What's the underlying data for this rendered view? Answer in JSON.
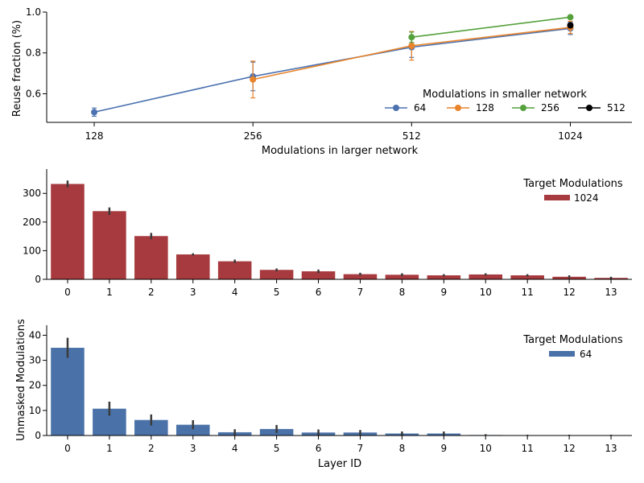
{
  "chart_data": [
    {
      "type": "line",
      "xlabel": "Modulations in larger network",
      "ylabel": "Reuse fraction (%)",
      "x": [
        128,
        256,
        512,
        1024
      ],
      "x_scale": "log2",
      "xlim": [
        104,
        1340
      ],
      "ylim": [
        0.46,
        1.0
      ],
      "yticks": [
        0.6,
        0.8,
        1.0
      ],
      "ytick_labels": [
        "0.6",
        "0.8",
        "1.0"
      ],
      "xtick_labels": [
        "128",
        "256",
        "512",
        "1024"
      ],
      "legend_title": "Modulations in smaller network",
      "legend_position": "bottom-right",
      "series": [
        {
          "name": "64",
          "color": "#4c72b0",
          "values": [
            0.51,
            0.685,
            0.828,
            0.92
          ],
          "err": [
            0.02,
            0.07,
            0.05,
            0.03
          ]
        },
        {
          "name": "128",
          "color": "#e8842c",
          "values": [
            null,
            0.67,
            0.835,
            0.925
          ],
          "err": [
            null,
            0.09,
            0.07,
            0.03
          ]
        },
        {
          "name": "256",
          "color": "#55a13c",
          "values": [
            null,
            null,
            0.877,
            0.975
          ],
          "err": [
            null,
            null,
            0.025,
            0.005
          ]
        },
        {
          "name": "512",
          "color": "#000000",
          "values": [
            null,
            null,
            null,
            0.935
          ],
          "err": [
            null,
            null,
            null,
            0.01
          ]
        }
      ]
    },
    {
      "type": "bar",
      "categories": [
        "0",
        "1",
        "2",
        "3",
        "4",
        "5",
        "6",
        "7",
        "8",
        "9",
        "10",
        "11",
        "12",
        "13"
      ],
      "ylim": [
        0,
        385
      ],
      "yticks": [
        0,
        100,
        200,
        300
      ],
      "ytick_labels": [
        "0",
        "100",
        "200",
        "300"
      ],
      "legend_title": "Target Modulations",
      "legend_position": "top-right",
      "series": [
        {
          "name": "1024",
          "color": "#a73a3e",
          "values": [
            333,
            238,
            151,
            87,
            63,
            33,
            28,
            18,
            16,
            14,
            17,
            14,
            9,
            5
          ],
          "err": [
            12,
            13,
            11,
            4,
            6,
            5,
            6,
            5,
            5,
            4,
            4,
            4,
            5,
            4
          ]
        }
      ],
      "xlabel": "",
      "ylabel": ""
    },
    {
      "type": "bar",
      "categories": [
        "0",
        "1",
        "2",
        "3",
        "4",
        "5",
        "6",
        "7",
        "8",
        "9",
        "10",
        "11",
        "12",
        "13"
      ],
      "ylim": [
        0,
        44
      ],
      "yticks": [
        0,
        10,
        20,
        30,
        40
      ],
      "ytick_labels": [
        "0",
        "10",
        "20",
        "30",
        "40"
      ],
      "legend_title": "Target Modulations",
      "legend_position": "top-right",
      "xlabel": "Layer ID",
      "ylabel": "Unmasked Modulations",
      "series": [
        {
          "name": "64",
          "color": "#4a72a8",
          "values": [
            35,
            10.7,
            6.2,
            4.3,
            1.3,
            2.6,
            1.2,
            1.2,
            0.8,
            0.8,
            0.2,
            0.1,
            0.1,
            0.1
          ],
          "err": [
            4.0,
            2.8,
            2.2,
            1.8,
            1.2,
            1.6,
            1.2,
            1.0,
            0.8,
            0.8,
            0.3,
            0.2,
            0.2,
            0.2
          ]
        }
      ]
    }
  ]
}
